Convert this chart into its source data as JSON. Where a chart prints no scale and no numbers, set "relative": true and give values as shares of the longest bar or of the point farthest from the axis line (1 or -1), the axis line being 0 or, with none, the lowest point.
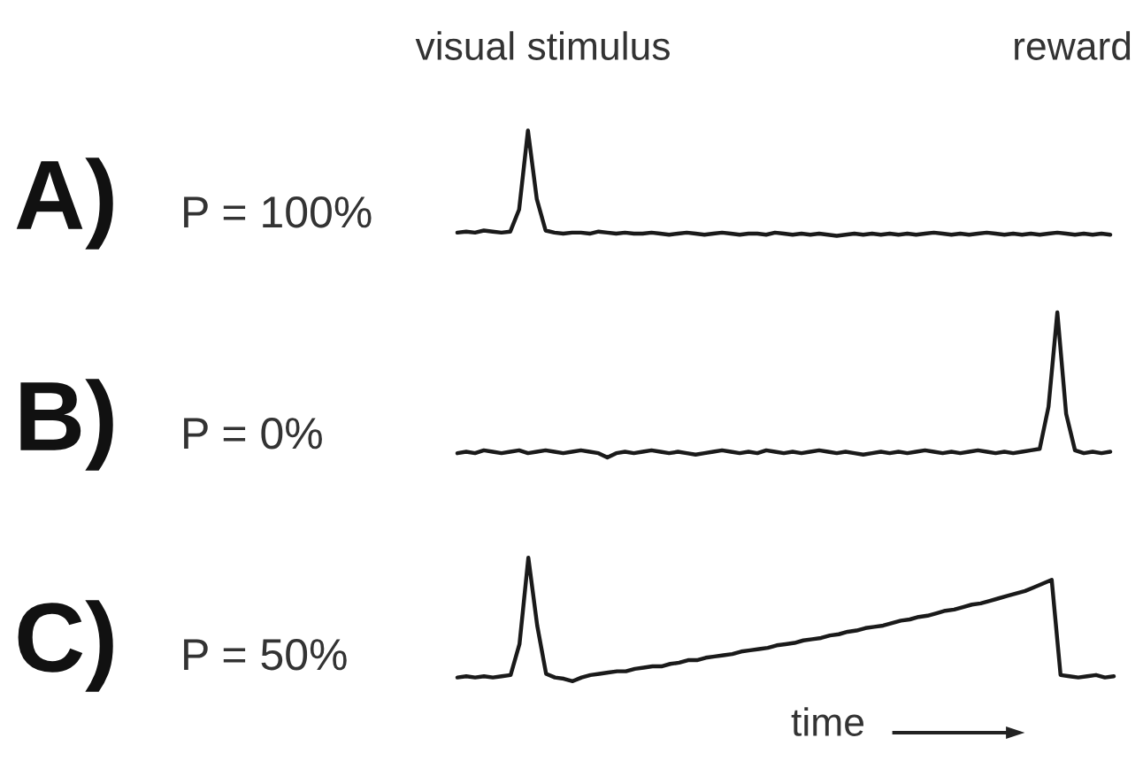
{
  "chart_data": [
    {
      "type": "line",
      "title": "A)",
      "subtitle": "P = 100%",
      "annotations": [
        "visual stimulus",
        "reward"
      ],
      "relative": true,
      "categories": [
        null,
        null,
        null,
        null,
        null,
        null,
        null,
        null,
        null,
        null,
        null,
        null,
        null,
        null,
        null,
        null,
        null,
        null,
        null,
        null,
        null,
        null,
        null,
        null,
        null,
        null,
        null,
        null,
        null,
        null,
        null,
        null,
        null,
        null,
        null,
        null,
        null,
        null,
        null,
        null,
        null,
        null,
        null,
        null,
        null,
        null,
        null,
        null,
        null,
        null,
        null,
        null,
        null,
        null,
        null,
        null,
        null,
        null,
        null,
        null,
        null,
        null,
        null,
        null,
        null,
        null,
        null,
        null,
        null,
        null,
        null,
        null,
        null,
        null,
        null
      ],
      "series": [
        {
          "color": "#1a1a1a",
          "values": [
            0.03,
            0.04,
            0.03,
            0.05,
            0.04,
            0.03,
            0.04,
            0.25,
            1,
            0.35,
            0.05,
            0.03,
            0.02,
            0.03,
            0.03,
            0.02,
            0.04,
            0.03,
            0.02,
            0.03,
            0.02,
            0.02,
            0.03,
            0.02,
            0.01,
            0.02,
            0.03,
            0.02,
            0.01,
            0.02,
            0.03,
            0.02,
            0.01,
            0.02,
            0.02,
            0.01,
            0.03,
            0.02,
            0.01,
            0.02,
            0.01,
            0.02,
            0.01,
            0,
            0.01,
            0.02,
            0.01,
            0.02,
            0.01,
            0.02,
            0.01,
            0.02,
            0.01,
            0.02,
            0.03,
            0.02,
            0.01,
            0.02,
            0.01,
            0.02,
            0.03,
            0.02,
            0.01,
            0.02,
            0.01,
            0.02,
            0.01,
            0.02,
            0.03,
            0.02,
            0.01,
            0.02,
            0.01,
            0.02,
            0.01
          ]
        }
      ]
    },
    {
      "type": "line",
      "title": "B)",
      "subtitle": "P = 0%",
      "relative": true,
      "categories": [
        null,
        null,
        null,
        null,
        null,
        null,
        null,
        null,
        null,
        null,
        null,
        null,
        null,
        null,
        null,
        null,
        null,
        null,
        null,
        null,
        null,
        null,
        null,
        null,
        null,
        null,
        null,
        null,
        null,
        null,
        null,
        null,
        null,
        null,
        null,
        null,
        null,
        null,
        null,
        null,
        null,
        null,
        null,
        null,
        null,
        null,
        null,
        null,
        null,
        null,
        null,
        null,
        null,
        null,
        null,
        null,
        null,
        null,
        null,
        null,
        null,
        null,
        null,
        null,
        null,
        null,
        null,
        null,
        null,
        null,
        null,
        null,
        null,
        null,
        null
      ],
      "series": [
        {
          "color": "#1a1a1a",
          "values": [
            0.03,
            0.04,
            0.03,
            0.05,
            0.04,
            0.03,
            0.04,
            0.05,
            0.03,
            0.04,
            0.05,
            0.04,
            0.03,
            0.04,
            0.05,
            0.04,
            0.03,
            0,
            0.03,
            0.04,
            0.03,
            0.04,
            0.05,
            0.04,
            0.03,
            0.04,
            0.03,
            0.02,
            0.03,
            0.04,
            0.05,
            0.04,
            0.03,
            0.04,
            0.03,
            0.05,
            0.04,
            0.03,
            0.04,
            0.03,
            0.04,
            0.05,
            0.04,
            0.03,
            0.04,
            0.03,
            0.02,
            0.03,
            0.04,
            0.03,
            0.04,
            0.03,
            0.04,
            0.05,
            0.04,
            0.03,
            0.04,
            0.03,
            0.04,
            0.05,
            0.04,
            0.03,
            0.04,
            0.03,
            0.04,
            0.05,
            0.06,
            0.35,
            1,
            0.3,
            0.05,
            0.03,
            0.04,
            0.03,
            0.04
          ]
        }
      ]
    },
    {
      "type": "line",
      "title": "C)",
      "subtitle": "P = 50%",
      "xlabel": "time",
      "relative": true,
      "categories": [
        null,
        null,
        null,
        null,
        null,
        null,
        null,
        null,
        null,
        null,
        null,
        null,
        null,
        null,
        null,
        null,
        null,
        null,
        null,
        null,
        null,
        null,
        null,
        null,
        null,
        null,
        null,
        null,
        null,
        null,
        null,
        null,
        null,
        null,
        null,
        null,
        null,
        null,
        null,
        null,
        null,
        null,
        null,
        null,
        null,
        null,
        null,
        null,
        null,
        null,
        null,
        null,
        null,
        null,
        null,
        null,
        null,
        null,
        null,
        null,
        null,
        null,
        null,
        null,
        null,
        null,
        null,
        null,
        null,
        null,
        null,
        null,
        null,
        null,
        null
      ],
      "series": [
        {
          "color": "#1a1a1a",
          "values": [
            0.03,
            0.04,
            0.03,
            0.04,
            0.03,
            0.04,
            0.05,
            0.3,
            1,
            0.45,
            0.06,
            0.03,
            0.02,
            0,
            0.03,
            0.05,
            0.06,
            0.07,
            0.08,
            0.08,
            0.1,
            0.11,
            0.12,
            0.12,
            0.14,
            0.15,
            0.17,
            0.17,
            0.19,
            0.2,
            0.21,
            0.22,
            0.24,
            0.25,
            0.26,
            0.27,
            0.29,
            0.3,
            0.31,
            0.33,
            0.34,
            0.35,
            0.37,
            0.38,
            0.4,
            0.41,
            0.43,
            0.44,
            0.45,
            0.47,
            0.49,
            0.5,
            0.52,
            0.53,
            0.55,
            0.57,
            0.58,
            0.6,
            0.62,
            0.63,
            0.65,
            0.67,
            0.69,
            0.71,
            0.73,
            0.76,
            0.79,
            0.82,
            0.05,
            0.04,
            0.03,
            0.04,
            0.05,
            0.03,
            0.04
          ]
        }
      ]
    }
  ]
}
